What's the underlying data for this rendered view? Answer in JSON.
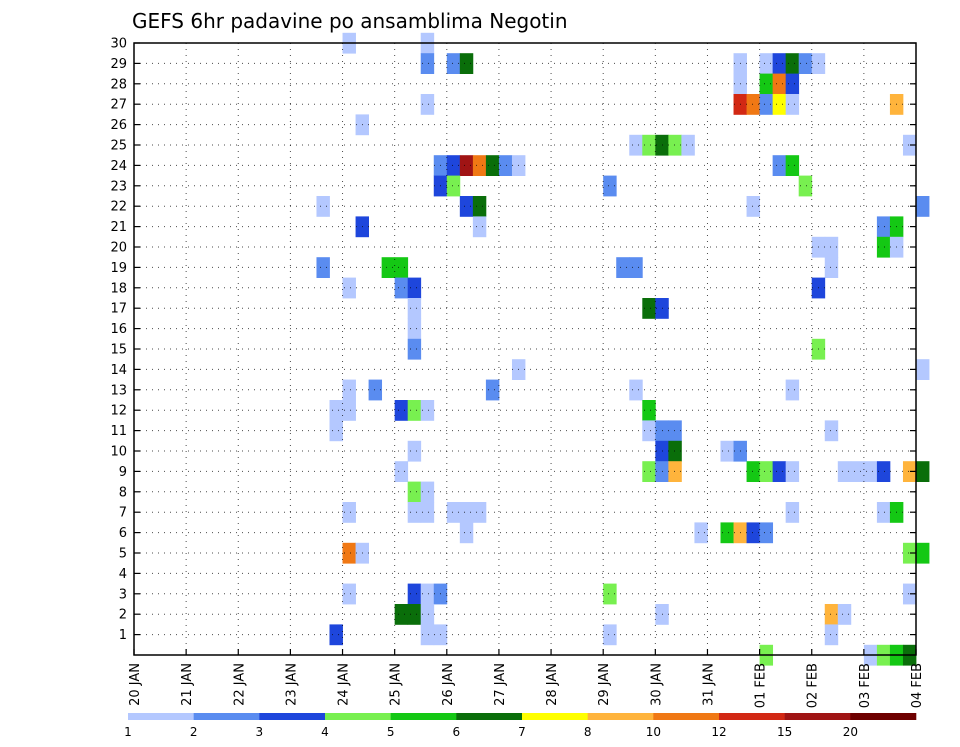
{
  "chart_data": {
    "type": "heatmap",
    "title": "GEFS 6hr padavine po ansamblima Negotin",
    "x_tick_labels": [
      "20 JAN",
      "21 JAN",
      "22 JAN",
      "23 JAN",
      "24 JAN",
      "25 JAN",
      "26 JAN",
      "27 JAN",
      "28 JAN",
      "29 JAN",
      "30 JAN",
      "31 JAN",
      "01 FEB",
      "02 FEB",
      "03 FEB",
      "04 FEB"
    ],
    "y_tick_labels": [
      "1",
      "2",
      "3",
      "4",
      "5",
      "6",
      "7",
      "8",
      "9",
      "10",
      "11",
      "12",
      "13",
      "14",
      "15",
      "16",
      "17",
      "18",
      "19",
      "20",
      "21",
      "22",
      "23",
      "24",
      "25",
      "26",
      "27",
      "28",
      "29",
      "30"
    ],
    "y_range": [
      0,
      30
    ],
    "grid": true,
    "time_step_hours": 6,
    "colorbar": {
      "tick_labels": [
        "1",
        "2",
        "3",
        "4",
        "5",
        "6",
        "7",
        "8",
        "10",
        "12",
        "15",
        "20"
      ],
      "colors": [
        "#b4c8ff",
        "#5a8cf0",
        "#1e46dc",
        "#78f050",
        "#14c814",
        "#0a6e0a",
        "#ffff00",
        "#ffb43c",
        "#f07814",
        "#d22814",
        "#a01414",
        "#6e0000"
      ]
    },
    "cells": [
      [
        30,
        16,
        0
      ],
      [
        30,
        22,
        0
      ],
      [
        29,
        22,
        1
      ],
      [
        29,
        24,
        1
      ],
      [
        29,
        25,
        5
      ],
      [
        29,
        46,
        0
      ],
      [
        29,
        48,
        0
      ],
      [
        29,
        49,
        2
      ],
      [
        29,
        50,
        5
      ],
      [
        29,
        51,
        1
      ],
      [
        29,
        52,
        0
      ],
      [
        28,
        46,
        0
      ],
      [
        28,
        48,
        4
      ],
      [
        28,
        49,
        8
      ],
      [
        28,
        50,
        2
      ],
      [
        27,
        22,
        0
      ],
      [
        27,
        46,
        9
      ],
      [
        27,
        47,
        8
      ],
      [
        27,
        48,
        1
      ],
      [
        27,
        49,
        6
      ],
      [
        27,
        50,
        0
      ],
      [
        27,
        58,
        7
      ],
      [
        26,
        17,
        0
      ],
      [
        25,
        38,
        0
      ],
      [
        25,
        39,
        3
      ],
      [
        25,
        40,
        5
      ],
      [
        25,
        41,
        3
      ],
      [
        25,
        42,
        0
      ],
      [
        25,
        59,
        0
      ],
      [
        24,
        23,
        1
      ],
      [
        24,
        24,
        2
      ],
      [
        24,
        25,
        10
      ],
      [
        24,
        26,
        8
      ],
      [
        24,
        27,
        5
      ],
      [
        24,
        28,
        1
      ],
      [
        24,
        29,
        0
      ],
      [
        24,
        49,
        1
      ],
      [
        24,
        50,
        4
      ],
      [
        23,
        23,
        2
      ],
      [
        23,
        24,
        3
      ],
      [
        23,
        36,
        1
      ],
      [
        23,
        51,
        3
      ],
      [
        22,
        14,
        0
      ],
      [
        22,
        25,
        2
      ],
      [
        22,
        26,
        5
      ],
      [
        22,
        47,
        0
      ],
      [
        22,
        60,
        1
      ],
      [
        21,
        17,
        2
      ],
      [
        21,
        26,
        0
      ],
      [
        21,
        57,
        1
      ],
      [
        21,
        58,
        4
      ],
      [
        20,
        52,
        0
      ],
      [
        20,
        53,
        0
      ],
      [
        20,
        57,
        4
      ],
      [
        20,
        58,
        0
      ],
      [
        19,
        14,
        1
      ],
      [
        19,
        19,
        4
      ],
      [
        19,
        20,
        4
      ],
      [
        19,
        37,
        1
      ],
      [
        19,
        38,
        1
      ],
      [
        19,
        53,
        0
      ],
      [
        18,
        16,
        0
      ],
      [
        18,
        20,
        1
      ],
      [
        18,
        21,
        2
      ],
      [
        18,
        52,
        2
      ],
      [
        17,
        21,
        0
      ],
      [
        17,
        39,
        5
      ],
      [
        17,
        40,
        2
      ],
      [
        16,
        21,
        0
      ],
      [
        15,
        21,
        1
      ],
      [
        15,
        52,
        3
      ],
      [
        14,
        29,
        0
      ],
      [
        14,
        60,
        0
      ],
      [
        13,
        16,
        0
      ],
      [
        13,
        18,
        1
      ],
      [
        13,
        27,
        1
      ],
      [
        13,
        38,
        0
      ],
      [
        13,
        50,
        0
      ],
      [
        12,
        15,
        0
      ],
      [
        12,
        16,
        0
      ],
      [
        12,
        20,
        2
      ],
      [
        12,
        21,
        3
      ],
      [
        12,
        22,
        0
      ],
      [
        12,
        39,
        4
      ],
      [
        11,
        15,
        0
      ],
      [
        11,
        39,
        0
      ],
      [
        11,
        40,
        1
      ],
      [
        11,
        41,
        1
      ],
      [
        11,
        53,
        0
      ],
      [
        10,
        21,
        0
      ],
      [
        10,
        40,
        2
      ],
      [
        10,
        41,
        5
      ],
      [
        10,
        45,
        0
      ],
      [
        10,
        46,
        1
      ],
      [
        9,
        20,
        0
      ],
      [
        9,
        39,
        3
      ],
      [
        9,
        40,
        1
      ],
      [
        9,
        41,
        7
      ],
      [
        9,
        47,
        4
      ],
      [
        9,
        48,
        3
      ],
      [
        9,
        49,
        2
      ],
      [
        9,
        50,
        0
      ],
      [
        9,
        54,
        0
      ],
      [
        9,
        55,
        0
      ],
      [
        9,
        56,
        0
      ],
      [
        9,
        57,
        2
      ],
      [
        9,
        59,
        7
      ],
      [
        9,
        60,
        5
      ],
      [
        8,
        21,
        3
      ],
      [
        8,
        22,
        0
      ],
      [
        7,
        16,
        0
      ],
      [
        7,
        21,
        0
      ],
      [
        7,
        22,
        0
      ],
      [
        7,
        24,
        0
      ],
      [
        7,
        25,
        0
      ],
      [
        7,
        26,
        0
      ],
      [
        7,
        50,
        0
      ],
      [
        7,
        57,
        0
      ],
      [
        7,
        58,
        4
      ],
      [
        6,
        25,
        0
      ],
      [
        6,
        43,
        0
      ],
      [
        6,
        45,
        4
      ],
      [
        6,
        46,
        7
      ],
      [
        6,
        47,
        2
      ],
      [
        6,
        48,
        1
      ],
      [
        5,
        16,
        8
      ],
      [
        5,
        17,
        0
      ],
      [
        5,
        59,
        3
      ],
      [
        5,
        60,
        4
      ],
      [
        3,
        16,
        0
      ],
      [
        3,
        21,
        2
      ],
      [
        3,
        22,
        0
      ],
      [
        3,
        23,
        1
      ],
      [
        3,
        36,
        3
      ],
      [
        3,
        59,
        0
      ],
      [
        2,
        20,
        5
      ],
      [
        2,
        21,
        5
      ],
      [
        2,
        22,
        0
      ],
      [
        2,
        40,
        0
      ],
      [
        2,
        53,
        7
      ],
      [
        2,
        54,
        0
      ],
      [
        1,
        15,
        2
      ],
      [
        1,
        22,
        0
      ],
      [
        1,
        23,
        0
      ],
      [
        1,
        36,
        0
      ],
      [
        1,
        53,
        0
      ],
      [
        0,
        48,
        3
      ],
      [
        0,
        56,
        0
      ],
      [
        0,
        57,
        3
      ],
      [
        0,
        58,
        4
      ],
      [
        0,
        59,
        5
      ]
    ]
  }
}
